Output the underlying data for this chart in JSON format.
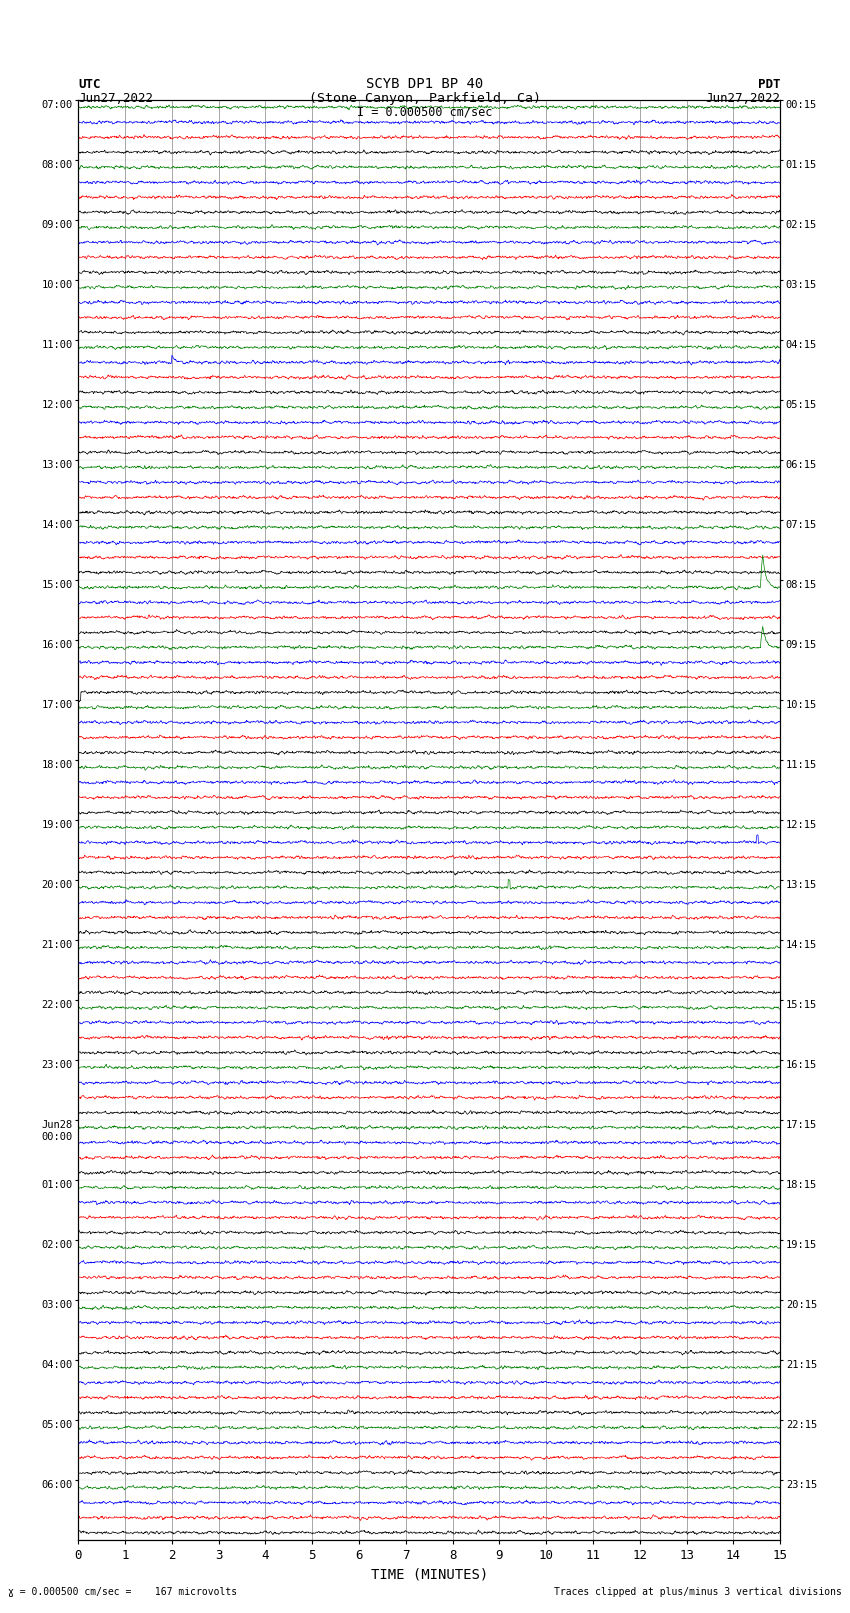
{
  "title_line1": "SCYB DP1 BP 40",
  "title_line2": "(Stone Canyon, Parkfield, Ca)",
  "scale_text": "I = 0.000500 cm/sec",
  "utc_label": "UTC",
  "pdt_label": "PDT",
  "date_left": "Jun27,2022",
  "date_right": "Jun27,2022",
  "xlabel": "TIME (MINUTES)",
  "footer_left": "= 0.000500 cm/sec =    167 microvolts",
  "footer_right": "Traces clipped at plus/minus 3 vertical divisions",
  "left_times": [
    "07:00",
    "08:00",
    "09:00",
    "10:00",
    "11:00",
    "12:00",
    "13:00",
    "14:00",
    "15:00",
    "16:00",
    "17:00",
    "18:00",
    "19:00",
    "20:00",
    "21:00",
    "22:00",
    "23:00",
    "Jun28\n00:00",
    "01:00",
    "02:00",
    "03:00",
    "04:00",
    "05:00",
    "06:00"
  ],
  "right_times": [
    "00:15",
    "01:15",
    "02:15",
    "03:15",
    "04:15",
    "05:15",
    "06:15",
    "07:15",
    "08:15",
    "09:15",
    "10:15",
    "11:15",
    "12:15",
    "13:15",
    "14:15",
    "15:15",
    "16:15",
    "17:15",
    "18:15",
    "19:15",
    "20:15",
    "21:15",
    "22:15",
    "23:15"
  ],
  "n_rows": 24,
  "n_traces_per_row": 4,
  "trace_colors": [
    "#000000",
    "#ff0000",
    "#0000ff",
    "#008000"
  ],
  "x_min": 0,
  "x_max": 15,
  "xticks": [
    0,
    1,
    2,
    3,
    4,
    5,
    6,
    7,
    8,
    9,
    10,
    11,
    12,
    13,
    14,
    15
  ],
  "background_color": "#ffffff",
  "base_noise_amp": 0.012,
  "grid_color": "#666666",
  "grid_lw": 0.4
}
